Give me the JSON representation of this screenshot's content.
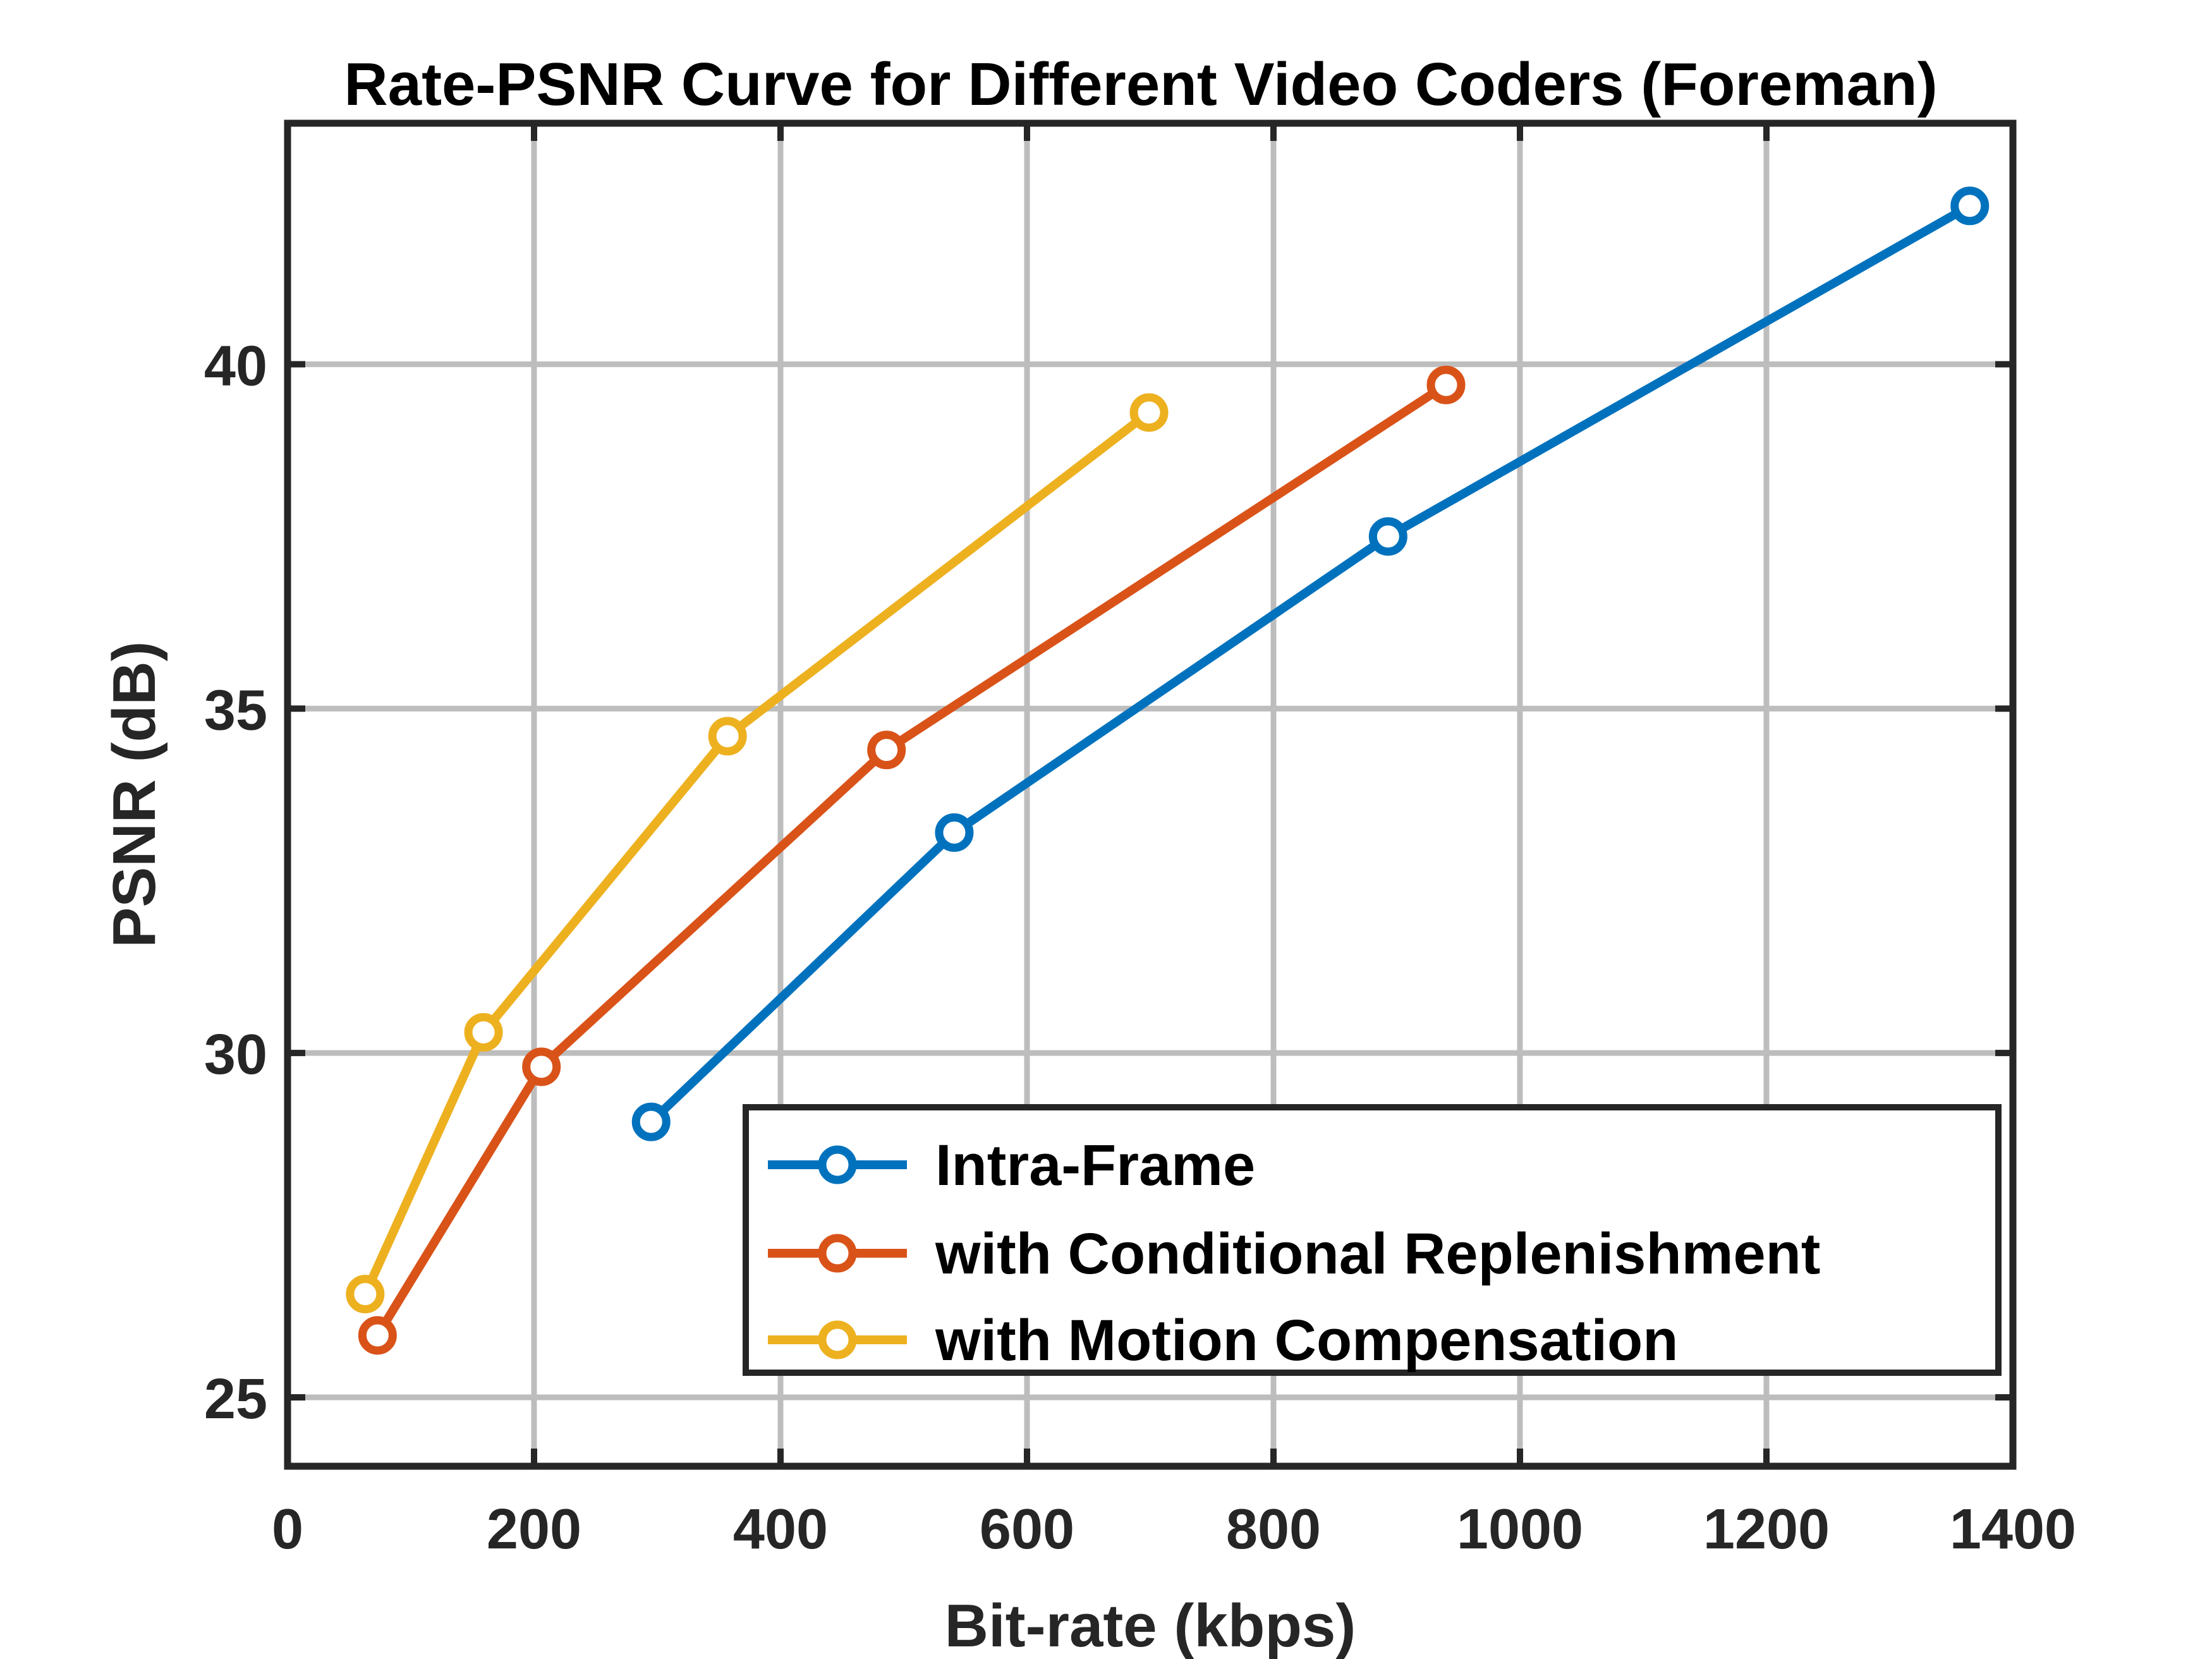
{
  "chart_data": {
    "type": "line",
    "title": "Rate-PSNR Curve for Different Video Coders (Foreman)",
    "xlabel": "Bit-rate (kbps)",
    "ylabel": "PSNR (dB)",
    "xlim": [
      0,
      1400
    ],
    "ylim": [
      24,
      43.5
    ],
    "xticks": [
      0,
      200,
      400,
      600,
      800,
      1000,
      1200,
      1400
    ],
    "yticks": [
      25,
      30,
      35,
      40
    ],
    "grid": true,
    "legend_position": "bottom-right",
    "marker": "circle",
    "series": [
      {
        "name": "Intra-Frame",
        "color": "#0072BD",
        "x": [
          295,
          541,
          893,
          1365
        ],
        "y": [
          29.0,
          33.2,
          37.5,
          42.3
        ]
      },
      {
        "name": "with Conditional Replenishment",
        "color": "#D95319",
        "x": [
          73,
          206,
          486,
          940
        ],
        "y": [
          25.9,
          29.8,
          34.4,
          39.7
        ]
      },
      {
        "name": "with Motion Compensation",
        "color": "#EDB120",
        "x": [
          63,
          159,
          357,
          699
        ],
        "y": [
          26.5,
          30.3,
          34.6,
          39.3
        ]
      }
    ]
  }
}
